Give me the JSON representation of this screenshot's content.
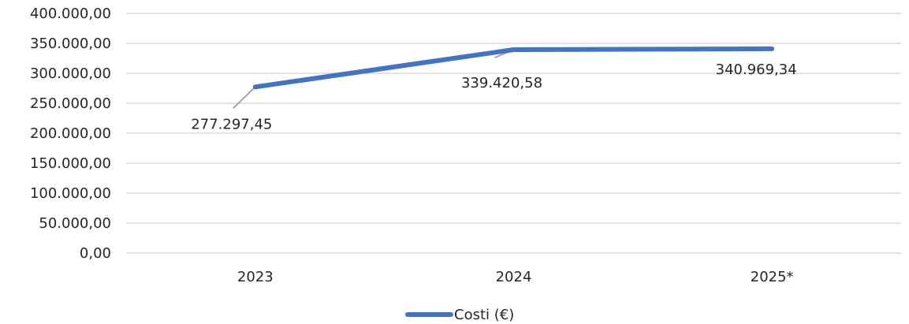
{
  "chart_data": {
    "type": "line",
    "categories": [
      "2023",
      "2024",
      "2025*"
    ],
    "series": [
      {
        "name": "Costi (€)",
        "values": [
          277297.45,
          339420.58,
          340969.34
        ],
        "color": "#4472c4"
      }
    ],
    "data_labels": [
      "277.297,45",
      "339.420,58",
      "340.969,34"
    ],
    "ylim": [
      0,
      400000
    ],
    "yticks": [
      0,
      50000,
      100000,
      150000,
      200000,
      250000,
      300000,
      350000,
      400000
    ],
    "ytick_labels": [
      "0,00",
      "50.000,00",
      "100.000,00",
      "150.000,00",
      "200.000,00",
      "250.000,00",
      "300.000,00",
      "350.000,00",
      "400.000,00"
    ],
    "grid": true,
    "legend_position": "bottom",
    "title": "",
    "xlabel": "",
    "ylabel": ""
  }
}
